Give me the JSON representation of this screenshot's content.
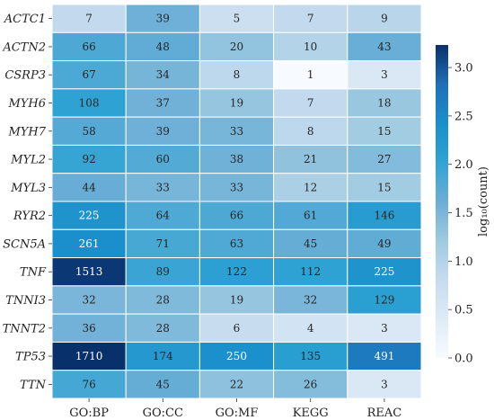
{
  "chart_data": {
    "type": "heatmap",
    "title": "",
    "rows": [
      "ACTC1",
      "ACTN2",
      "CSRP3",
      "MYH6",
      "MYH7",
      "MYL2",
      "MYL3",
      "RYR2",
      "SCN5A",
      "TNF",
      "TNNI3",
      "TNNT2",
      "TP53",
      "TTN"
    ],
    "columns": [
      "GO:BP",
      "GO:CC",
      "GO:MF",
      "KEGG",
      "REAC"
    ],
    "values": [
      [
        7,
        39,
        5,
        7,
        9
      ],
      [
        66,
        48,
        20,
        10,
        43
      ],
      [
        67,
        34,
        8,
        1,
        3
      ],
      [
        108,
        37,
        19,
        7,
        18
      ],
      [
        58,
        39,
        33,
        8,
        15
      ],
      [
        92,
        60,
        38,
        21,
        27
      ],
      [
        44,
        33,
        33,
        12,
        15
      ],
      [
        225,
        64,
        66,
        61,
        146
      ],
      [
        261,
        71,
        63,
        45,
        49
      ],
      [
        1513,
        89,
        122,
        112,
        225
      ],
      [
        32,
        28,
        19,
        32,
        129
      ],
      [
        36,
        28,
        6,
        4,
        3
      ],
      [
        1710,
        174,
        250,
        135,
        491
      ],
      [
        76,
        45,
        22,
        26,
        3
      ]
    ],
    "colorbar": {
      "label": "log₁₀(count)",
      "range": [
        0,
        3.233
      ],
      "ticks": [
        "0.0",
        "0.5",
        "1.0",
        "1.5",
        "2.0",
        "2.5",
        "3.0"
      ],
      "tick_values": [
        0,
        0.5,
        1.0,
        1.5,
        2.0,
        2.5,
        3.0
      ],
      "colormap": [
        "#f7fbff",
        "#deebf7",
        "#c6dbef",
        "#9ecae1",
        "#6baed6",
        "#2fa3d3",
        "#1a8fcb",
        "#1f6fb8",
        "#08306b"
      ]
    },
    "legend": "right"
  }
}
